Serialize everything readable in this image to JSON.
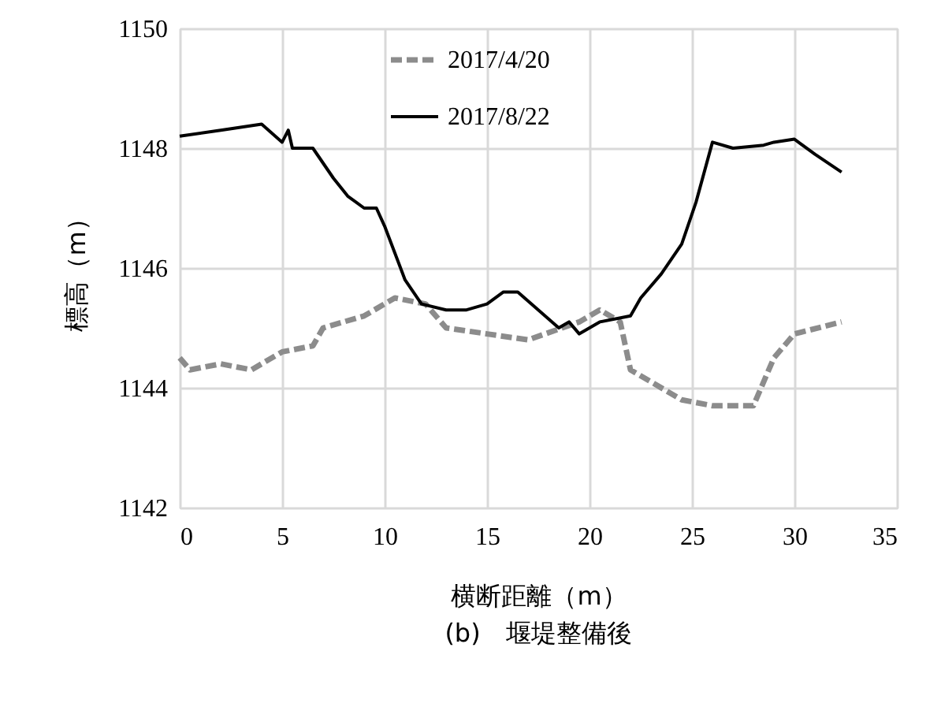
{
  "chart_data": {
    "type": "line",
    "xlabel": "横断距離（m）",
    "ylabel": "標高（m）",
    "annotations": [
      "(b)　堰堤整備後"
    ],
    "xlim": [
      0,
      35
    ],
    "xticks": [
      0,
      5,
      10,
      15,
      20,
      25,
      30,
      35
    ],
    "ylim": [
      1142,
      1150
    ],
    "yticks": [
      {
        "value": 1142,
        "label": "1142"
      },
      {
        "value": 1144,
        "label": "1144"
      },
      {
        "value": 1146,
        "label": "1146"
      },
      {
        "value": 1148,
        "label": "1148"
      },
      {
        "value": 1150,
        "label": "1150"
      }
    ],
    "grid": true,
    "legend": "top",
    "marker": "none",
    "series": [
      {
        "name": "2017/4/20",
        "color": "#8c8c8c",
        "line_style": "dashed",
        "x": [
          0,
          0.5,
          2,
          3.5,
          5,
          6.5,
          7,
          9,
          10.5,
          12,
          13,
          15,
          17,
          19.5,
          20.5,
          21.5,
          22,
          23,
          24.5,
          26,
          28,
          29,
          30,
          32.3
        ],
        "values": [
          1144.5,
          1144.3,
          1144.4,
          1144.3,
          1144.6,
          1144.7,
          1145.0,
          1145.2,
          1145.5,
          1145.4,
          1145.0,
          1144.9,
          1144.8,
          1145.1,
          1145.3,
          1145.1,
          1144.3,
          1144.1,
          1143.8,
          1143.7,
          1143.7,
          1144.5,
          1144.9,
          1145.1
        ]
      },
      {
        "name": "2017/8/22",
        "color": "#000000",
        "line_style": "solid",
        "x": [
          0,
          2,
          4,
          5,
          5.3,
          5.5,
          6.5,
          7.5,
          8.2,
          9,
          9.6,
          10,
          11,
          11.8,
          13,
          14,
          15,
          15.8,
          16.5,
          17.5,
          18.5,
          19,
          19.5,
          20.5,
          22,
          22.5,
          23.5,
          24.5,
          25.2,
          26,
          27,
          28.5,
          29,
          30,
          31,
          32.3
        ],
        "values": [
          1148.2,
          1148.3,
          1148.4,
          1148.1,
          1148.3,
          1148.0,
          1148.0,
          1147.5,
          1147.2,
          1147.0,
          1147.0,
          1146.7,
          1145.8,
          1145.4,
          1145.3,
          1145.3,
          1145.4,
          1145.6,
          1145.6,
          1145.3,
          1145.0,
          1145.1,
          1144.9,
          1145.1,
          1145.2,
          1145.5,
          1145.9,
          1146.4,
          1147.1,
          1148.1,
          1148.0,
          1148.05,
          1148.1,
          1148.15,
          1147.9,
          1147.6
        ]
      }
    ]
  }
}
